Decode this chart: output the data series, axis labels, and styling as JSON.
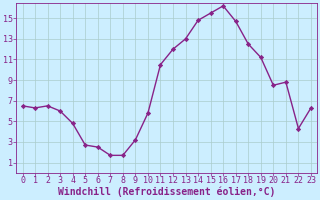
{
  "x": [
    0,
    1,
    2,
    3,
    4,
    5,
    6,
    7,
    8,
    9,
    10,
    11,
    12,
    13,
    14,
    15,
    16,
    17,
    18,
    19,
    20,
    21,
    22,
    23
  ],
  "y": [
    6.5,
    6.3,
    6.5,
    6.0,
    4.8,
    2.7,
    2.5,
    1.7,
    1.7,
    3.2,
    5.8,
    10.5,
    12.0,
    13.0,
    14.8,
    15.5,
    16.2,
    14.7,
    12.5,
    11.2,
    8.5,
    8.8,
    4.3,
    6.3
  ],
  "line_color": "#882288",
  "marker": "D",
  "marker_size": 2.2,
  "bg_color": "#cceeff",
  "grid_color": "#aacccc",
  "xlabel": "Windchill (Refroidissement éolien,°C)",
  "xlim": [
    -0.5,
    23.5
  ],
  "ylim": [
    0,
    16.5
  ],
  "xticks": [
    0,
    1,
    2,
    3,
    4,
    5,
    6,
    7,
    8,
    9,
    10,
    11,
    12,
    13,
    14,
    15,
    16,
    17,
    18,
    19,
    20,
    21,
    22,
    23
  ],
  "yticks": [
    1,
    3,
    5,
    7,
    9,
    11,
    13,
    15
  ],
  "font_color": "#882288",
  "xlabel_fontsize": 7,
  "tick_fontsize": 6,
  "linewidth": 1.0
}
